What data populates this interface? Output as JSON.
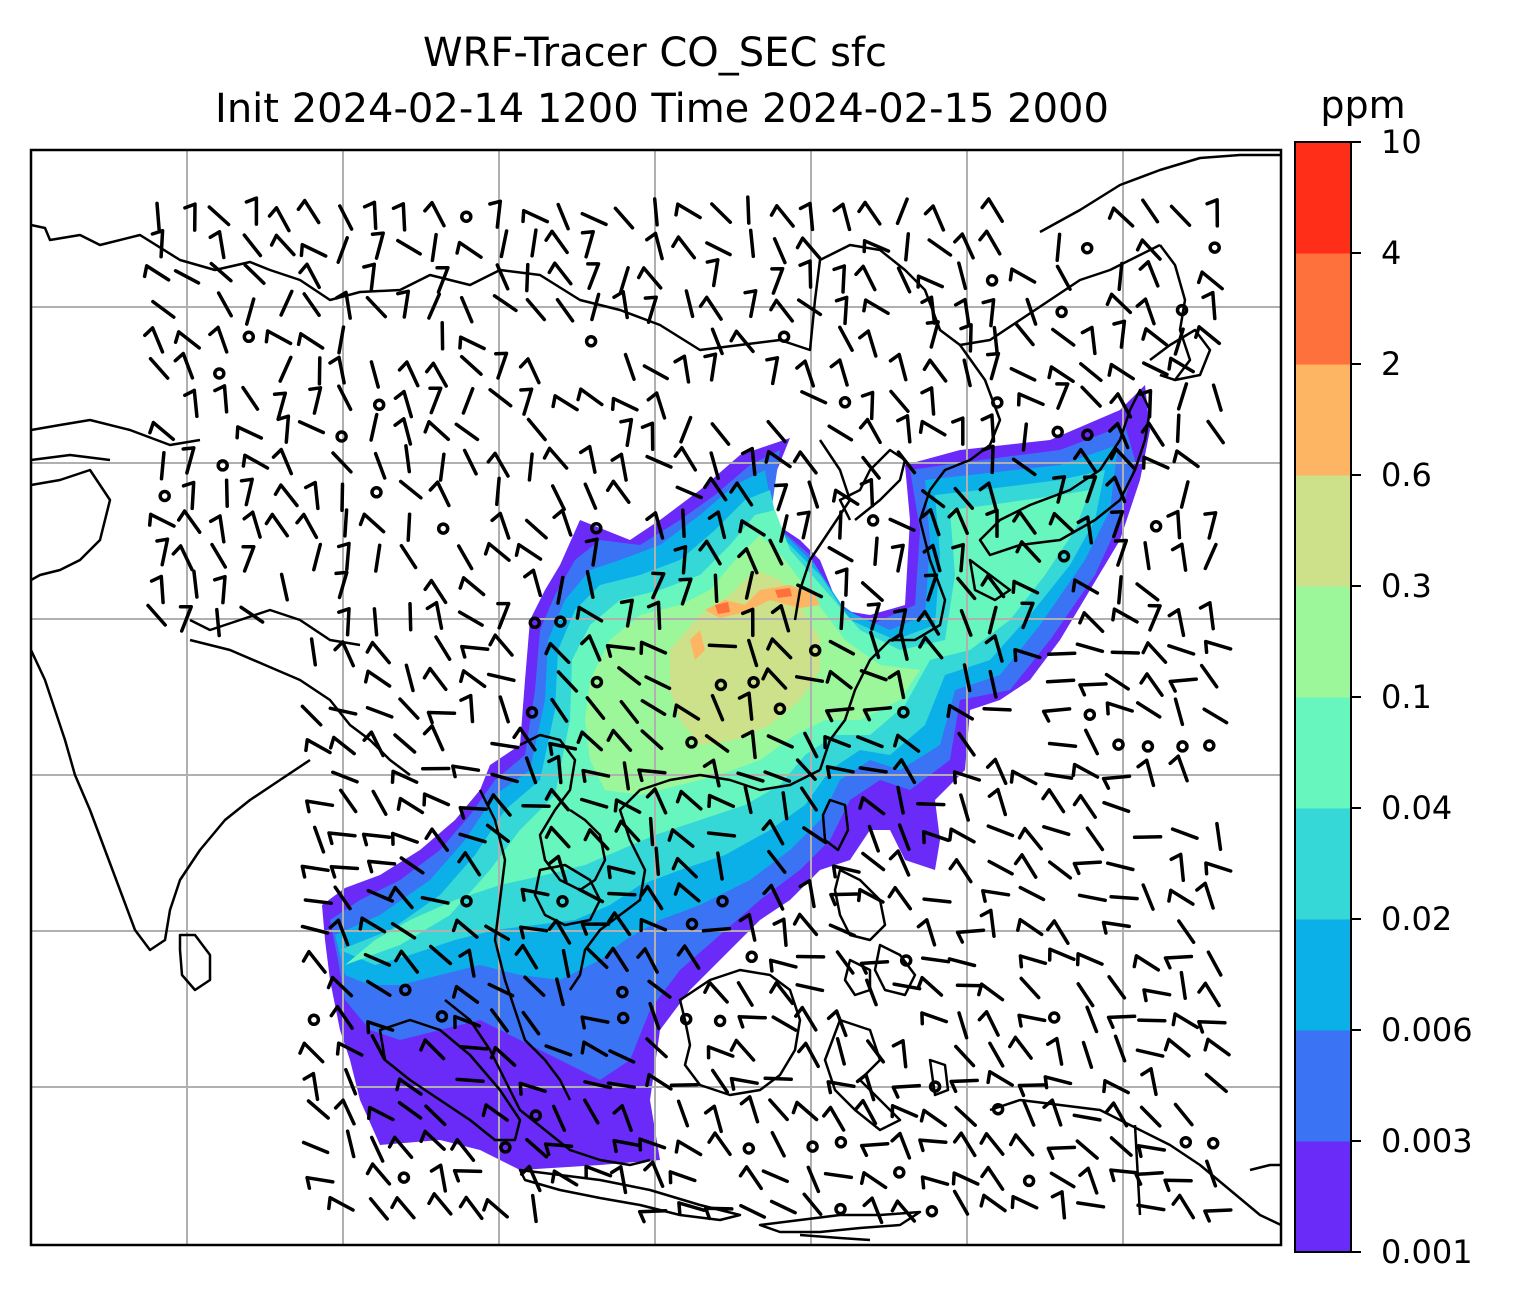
{
  "chart_data": {
    "type": "heatmap",
    "title": "WRF-Tracer CO_SEC sfc",
    "subtitle": "Init 2024-02-14 1200 Time 2024-02-15 2000",
    "colorbar": {
      "unit": "ppm",
      "ticks": [
        "0.001",
        "0.003",
        "0.006",
        "0.02",
        "0.04",
        "0.1",
        "0.3",
        "0.6",
        "2",
        "4",
        "10"
      ],
      "colors": [
        "#6a2af7",
        "#3a73f4",
        "#0cb0e8",
        "#35d8d6",
        "#67f6be",
        "#9cf79a",
        "#cde08a",
        "#fdb463",
        "#fe703c",
        "#fe2e18"
      ]
    },
    "grid": true,
    "features": [
      "coastlines",
      "country-borders",
      "gridlines",
      "wind-barbs",
      "co-tracer-field"
    ]
  }
}
